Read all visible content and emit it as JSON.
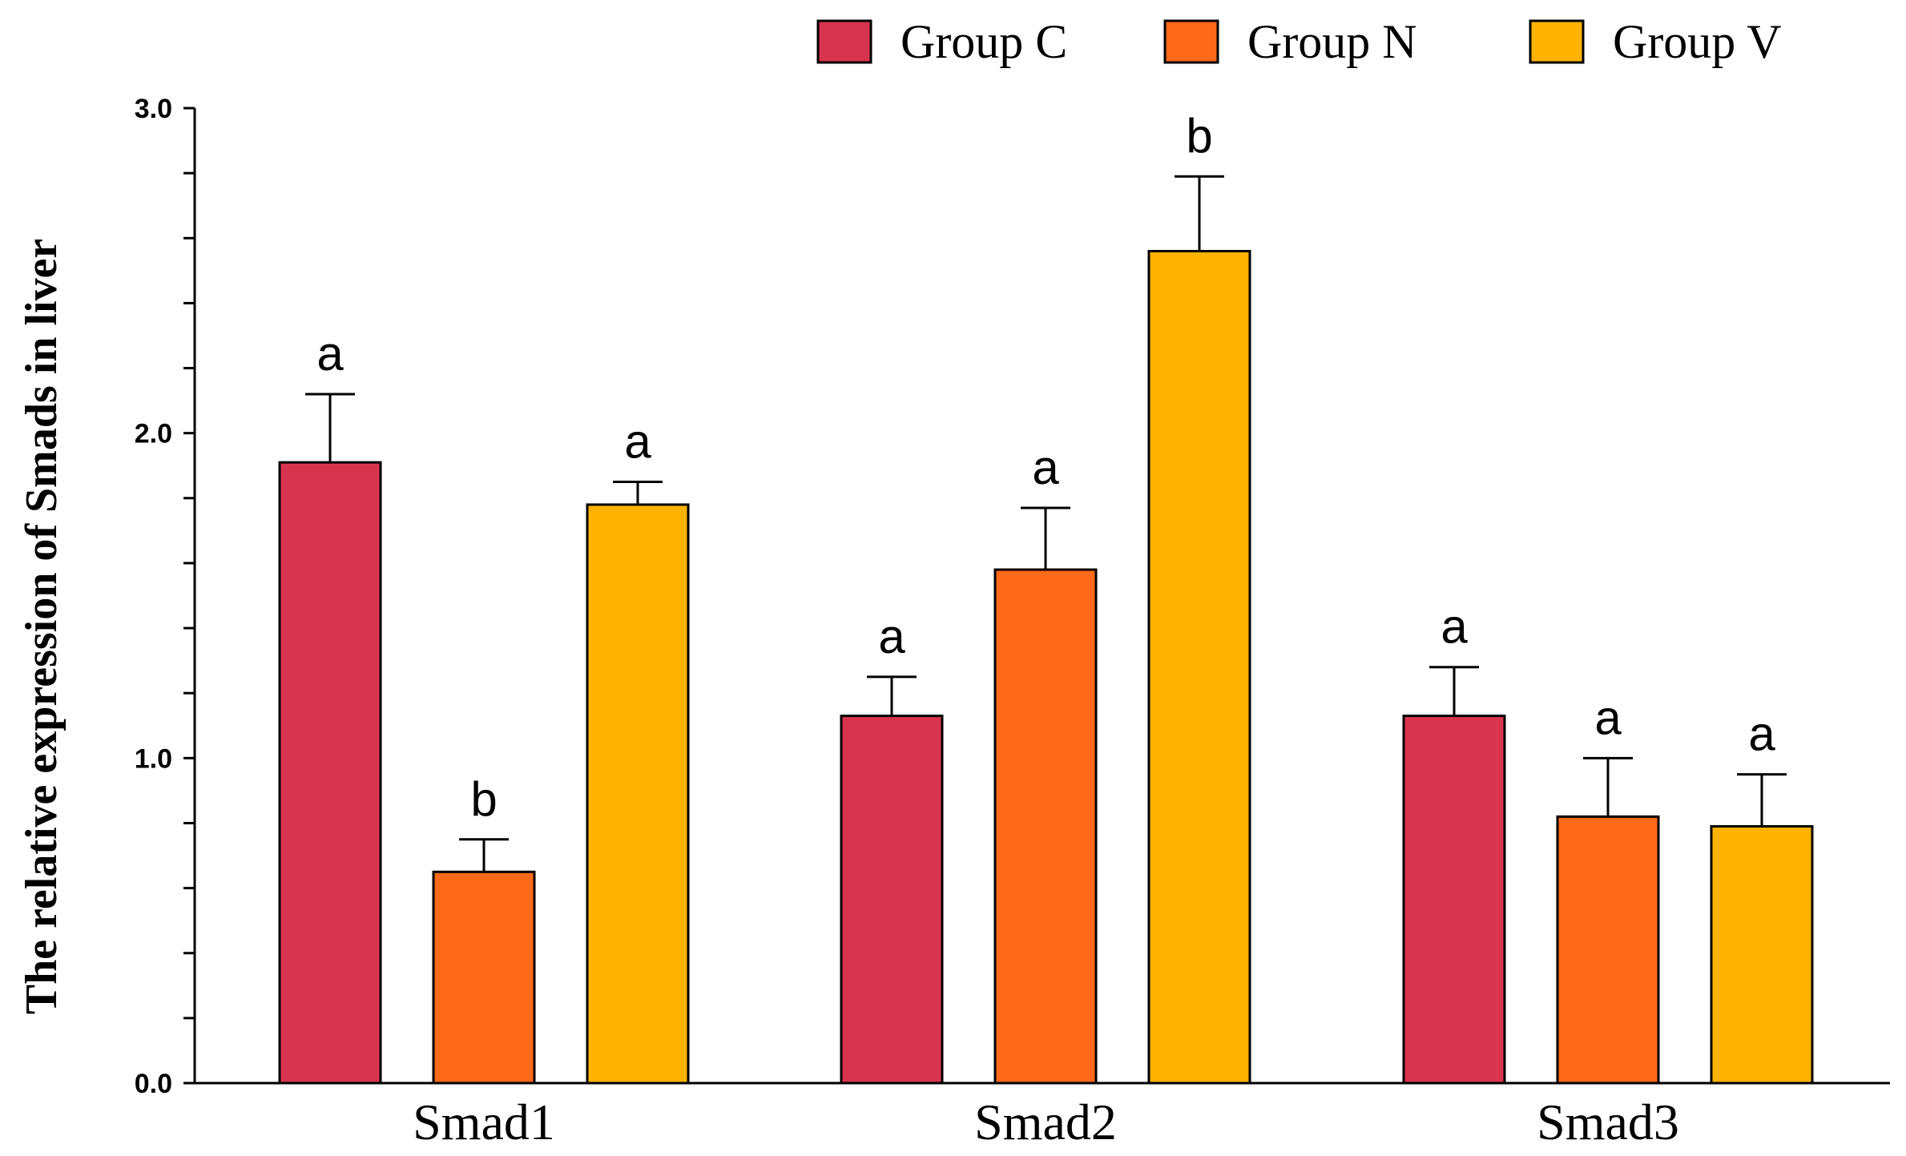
{
  "chart_data": {
    "type": "bar",
    "title": "",
    "xlabel": "",
    "ylabel": "The relative expression of Smads in liver",
    "ylim": [
      0,
      3.0
    ],
    "yticks": [
      "0.0",
      "1.0",
      "2.0",
      "3.0"
    ],
    "minor_tick_step": 0.2,
    "grid": false,
    "legend_position": "top",
    "categories": [
      "Smad1",
      "Smad2",
      "Smad3"
    ],
    "series": [
      {
        "name": "Group C",
        "color": "#D9344F",
        "values": [
          1.91,
          1.13,
          1.13
        ],
        "errors": [
          0.21,
          0.12,
          0.15
        ],
        "labels": [
          "a",
          "a",
          "a"
        ]
      },
      {
        "name": "Group N",
        "color": "#FF6A1A",
        "values": [
          0.65,
          1.58,
          0.82
        ],
        "errors": [
          0.1,
          0.19,
          0.18
        ],
        "labels": [
          "b",
          "a",
          "a"
        ]
      },
      {
        "name": "Group V",
        "color": "#FFB300",
        "values": [
          1.78,
          2.56,
          0.79
        ],
        "errors": [
          0.07,
          0.23,
          0.16
        ],
        "labels": [
          "a",
          "b",
          "a"
        ]
      }
    ]
  }
}
